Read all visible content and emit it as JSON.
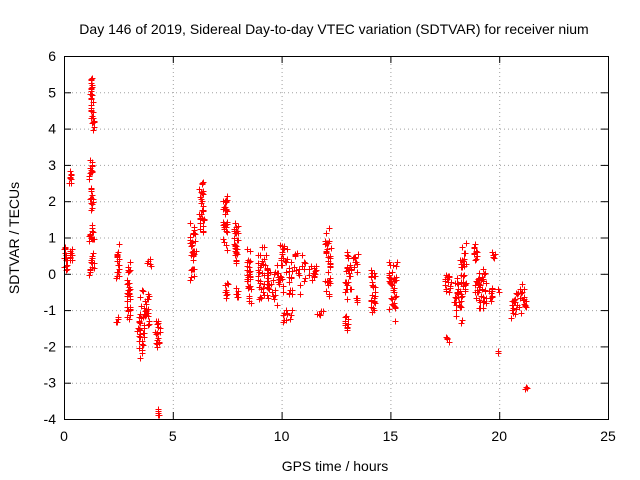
{
  "chart_data": {
    "type": "scatter",
    "title": "Day 146 of 2019, Sidereal Day-to-day VTEC variation (SDTVAR) for receiver nium",
    "xlabel": "GPS time / hours",
    "ylabel": "SDTVAR / TECUs",
    "xlim": [
      0,
      25
    ],
    "ylim": [
      -4,
      6
    ],
    "xticks": [
      0,
      5,
      10,
      15,
      20,
      25
    ],
    "yticks": [
      -4,
      -3,
      -2,
      -1,
      0,
      1,
      2,
      3,
      4,
      5,
      6
    ],
    "grid": true,
    "marker": "plus",
    "color": "#ff0000",
    "series": [
      {
        "name": "SDTVAR",
        "clusters": [
          {
            "x": [
              0.0,
              0.15
            ],
            "y": [
              0.0,
              0.9
            ]
          },
          {
            "x": [
              0.25,
              0.4
            ],
            "y": [
              0.3,
              0.75
            ]
          },
          {
            "x": [
              0.25,
              0.35
            ],
            "y": [
              2.4,
              2.9
            ]
          },
          {
            "x": [
              1.2,
              1.35
            ],
            "y": [
              4.2,
              5.6
            ]
          },
          {
            "x": [
              1.3,
              1.4
            ],
            "y": [
              3.9,
              4.4
            ]
          },
          {
            "x": [
              1.15,
              1.3
            ],
            "y": [
              2.5,
              3.3
            ]
          },
          {
            "x": [
              1.2,
              1.35
            ],
            "y": [
              1.7,
              2.4
            ]
          },
          {
            "x": [
              1.15,
              1.4
            ],
            "y": [
              0.8,
              1.4
            ]
          },
          {
            "x": [
              1.15,
              1.45
            ],
            "y": [
              -0.05,
              0.6
            ]
          },
          {
            "x": [
              2.4,
              2.55
            ],
            "y": [
              -0.2,
              0.85
            ]
          },
          {
            "x": [
              2.4,
              2.55
            ],
            "y": [
              -1.4,
              -1.15
            ]
          },
          {
            "x": [
              2.9,
              3.05
            ],
            "y": [
              -1.5,
              0.4
            ]
          },
          {
            "x": [
              3.35,
              3.7
            ],
            "y": [
              -2.5,
              -0.4
            ]
          },
          {
            "x": [
              3.7,
              3.9
            ],
            "y": [
              -1.5,
              -0.5
            ]
          },
          {
            "x": [
              3.8,
              4.0
            ],
            "y": [
              0.2,
              0.4
            ]
          },
          {
            "x": [
              4.2,
              4.4
            ],
            "y": [
              -2.2,
              -1.2
            ]
          },
          {
            "x": [
              4.3,
              4.4
            ],
            "y": [
              -3.95,
              -3.7
            ]
          },
          {
            "x": [
              5.8,
              6.05
            ],
            "y": [
              -0.3,
              1.6
            ]
          },
          {
            "x": [
              6.2,
              6.45
            ],
            "y": [
              0.9,
              2.7
            ]
          },
          {
            "x": [
              7.3,
              7.5
            ],
            "y": [
              0.6,
              2.4
            ]
          },
          {
            "x": [
              7.4,
              7.55
            ],
            "y": [
              -0.7,
              -0.2
            ]
          },
          {
            "x": [
              7.8,
              8.0
            ],
            "y": [
              0.1,
              1.7
            ]
          },
          {
            "x": [
              7.9,
              8.0
            ],
            "y": [
              -0.7,
              -0.4
            ]
          },
          {
            "x": [
              8.4,
              8.6
            ],
            "y": [
              -0.9,
              0.8
            ]
          },
          {
            "x": [
              8.9,
              9.4
            ],
            "y": [
              -0.9,
              0.9
            ]
          },
          {
            "x": [
              9.3,
              9.8
            ],
            "y": [
              -0.9,
              0.4
            ]
          },
          {
            "x": [
              9.8,
              10.2
            ],
            "y": [
              -0.6,
              1.0
            ]
          },
          {
            "x": [
              10.0,
              10.5
            ],
            "y": [
              -1.4,
              -0.9
            ]
          },
          {
            "x": [
              10.2,
              11.1
            ],
            "y": [
              -0.7,
              0.8
            ]
          },
          {
            "x": [
              11.0,
              11.6
            ],
            "y": [
              -0.3,
              0.4
            ]
          },
          {
            "x": [
              11.6,
              11.9
            ],
            "y": [
              -1.15,
              -1.0
            ]
          },
          {
            "x": [
              12.0,
              12.25
            ],
            "y": [
              -0.7,
              1.3
            ]
          },
          {
            "x": [
              12.9,
              13.2
            ],
            "y": [
              -0.8,
              0.7
            ]
          },
          {
            "x": [
              12.9,
              13.1
            ],
            "y": [
              -1.6,
              -1.1
            ]
          },
          {
            "x": [
              13.3,
              13.5
            ],
            "y": [
              0.0,
              0.65
            ]
          },
          {
            "x": [
              13.4,
              13.5
            ],
            "y": [
              -0.8,
              -0.6
            ]
          },
          {
            "x": [
              14.1,
              14.3
            ],
            "y": [
              -1.2,
              0.3
            ]
          },
          {
            "x": [
              14.9,
              15.3
            ],
            "y": [
              -1.3,
              0.75
            ]
          },
          {
            "x": [
              17.5,
              17.7
            ],
            "y": [
              -1.9,
              -1.7
            ]
          },
          {
            "x": [
              17.5,
              17.8
            ],
            "y": [
              -0.7,
              0.2
            ]
          },
          {
            "x": [
              17.9,
              18.3
            ],
            "y": [
              -1.5,
              0.1
            ]
          },
          {
            "x": [
              18.2,
              18.5
            ],
            "y": [
              -0.7,
              0.95
            ]
          },
          {
            "x": [
              18.8,
              19.0
            ],
            "y": [
              0.3,
              0.9
            ]
          },
          {
            "x": [
              18.9,
              19.1
            ],
            "y": [
              -0.7,
              0.0
            ]
          },
          {
            "x": [
              19.0,
              19.4
            ],
            "y": [
              -1.2,
              0.3
            ]
          },
          {
            "x": [
              19.5,
              19.7
            ],
            "y": [
              -0.8,
              -0.3
            ]
          },
          {
            "x": [
              19.6,
              19.8
            ],
            "y": [
              0.4,
              0.6
            ]
          },
          {
            "x": [
              19.9,
              20.0
            ],
            "y": [
              -0.5,
              -0.4
            ]
          },
          {
            "x": [
              19.85,
              19.95
            ],
            "y": [
              -2.2,
              -2.1
            ]
          },
          {
            "x": [
              20.5,
              20.8
            ],
            "y": [
              -1.3,
              -0.5
            ]
          },
          {
            "x": [
              20.8,
              21.3
            ],
            "y": [
              -1.1,
              -0.2
            ]
          },
          {
            "x": [
              21.2,
              21.35
            ],
            "y": [
              -3.2,
              -3.1
            ]
          }
        ]
      }
    ]
  }
}
